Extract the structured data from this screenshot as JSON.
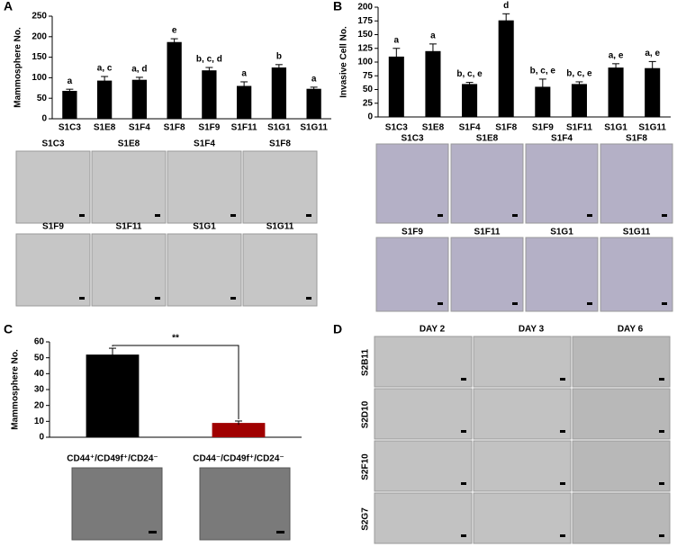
{
  "chart_data": [
    {
      "type": "bar",
      "label": "A",
      "ylabel": "Mammosphere No.",
      "categories": [
        "S1C3",
        "S1E8",
        "S1F4",
        "S1F8",
        "S1F9",
        "S1F11",
        "S1G1",
        "S1G11"
      ],
      "values": [
        68,
        93,
        95,
        187,
        118,
        80,
        125,
        73
      ],
      "errors": [
        4,
        10,
        6,
        8,
        7,
        10,
        7,
        4
      ],
      "annotations": [
        "a",
        "a, c",
        "a, d",
        "e",
        "b, c, d",
        "a",
        "b",
        "a"
      ],
      "color": "#000000",
      "ylim": [
        0,
        250
      ],
      "yticks": [
        0,
        50,
        100,
        150,
        200,
        250
      ],
      "image_labels": [
        [
          "S1C3",
          "S1E8",
          "S1F4",
          "S1F8"
        ],
        [
          "S1F9",
          "S1F11",
          "S1G1",
          "S1G11"
        ]
      ]
    },
    {
      "type": "bar",
      "label": "B",
      "ylabel": "Invasive Cell No.",
      "categories": [
        "S1C3",
        "S1E8",
        "S1F4",
        "S1F8",
        "S1F9",
        "S1F11",
        "S1G1",
        "S1G11"
      ],
      "values": [
        110,
        120,
        60,
        176,
        55,
        60,
        90,
        89
      ],
      "errors": [
        15,
        13,
        3,
        12,
        14,
        4,
        7,
        12
      ],
      "annotations": [
        "a",
        "a",
        "b, c, e",
        "d",
        "b, c, e",
        "b, c, e",
        "a, e",
        "a, e"
      ],
      "color": "#000000",
      "ylim": [
        0,
        200
      ],
      "yticks": [
        0,
        25,
        50,
        75,
        100,
        125,
        150,
        175,
        200
      ],
      "image_labels": [
        [
          "S1C3",
          "S1E8",
          "S1F4",
          "S1F8"
        ],
        [
          "S1F9",
          "S1F11",
          "S1G1",
          "S1G11"
        ]
      ]
    },
    {
      "type": "bar",
      "label": "C",
      "ylabel": "Mammosphere No.",
      "categories": [
        "CD44⁺/CD49f⁺/CD24⁻",
        "CD44⁻/CD49f⁺/CD24⁻"
      ],
      "values": [
        52,
        9
      ],
      "errors": [
        4,
        1.2
      ],
      "colors": [
        "#000000",
        "#a00000"
      ],
      "significance": "**",
      "ylim": [
        0,
        60
      ],
      "yticks": [
        0,
        10,
        20,
        30,
        40,
        50,
        60
      ]
    }
  ],
  "panel_d": {
    "label": "D",
    "columns": [
      "DAY 2",
      "DAY 3",
      "DAY 6"
    ],
    "rows": [
      "S2B11",
      "S2D10",
      "S2F10",
      "S2G7"
    ]
  }
}
